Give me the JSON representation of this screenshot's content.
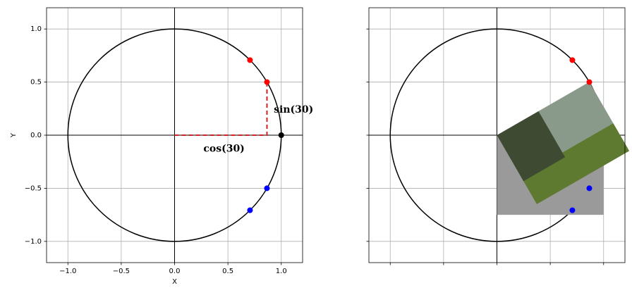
{
  "chart_data": [
    {
      "type": "unit-circle",
      "xlabel": "X",
      "ylabel": "Y",
      "xlim": [
        -1.2,
        1.2
      ],
      "ylim": [
        -1.2,
        1.2
      ],
      "xticks": [
        {
          "value": -1,
          "label": "−1.0"
        },
        {
          "value": -0.5,
          "label": "−0.5"
        },
        {
          "value": 0,
          "label": "0.0"
        },
        {
          "value": 0.5,
          "label": "0.5"
        },
        {
          "value": 1,
          "label": "1.0"
        }
      ],
      "yticks": [
        {
          "value": -1,
          "label": "−1.0"
        },
        {
          "value": -0.5,
          "label": "−0.5"
        },
        {
          "value": 0,
          "label": "0.0"
        },
        {
          "value": 0.5,
          "label": "0.5"
        },
        {
          "value": 1,
          "label": "1.0"
        }
      ],
      "grid": true,
      "hlines": [
        0
      ],
      "vlines": [
        0
      ],
      "circle_radius": 1,
      "points": [
        {
          "color": "#ff0000",
          "x": [
            0.707,
            0.866
          ],
          "y": [
            0.707,
            0.5
          ]
        },
        {
          "color": "#0000ff",
          "x": [
            0.866,
            0.707
          ],
          "y": [
            -0.5,
            -0.707
          ]
        },
        {
          "color": "#000000",
          "x": [
            1
          ],
          "y": [
            0
          ]
        }
      ],
      "dashed": {
        "color": "#d62020",
        "x": [
          0,
          0.866,
          0.866
        ],
        "y": [
          0,
          0,
          0.5
        ]
      },
      "annotations": [
        {
          "text": "sin(30)",
          "x": 0.93,
          "y": 0.24
        },
        {
          "text": "cos(30)",
          "x": 0.27,
          "y": -0.13
        }
      ]
    },
    {
      "type": "unit-circle",
      "xlim": [
        -1.2,
        1.2
      ],
      "ylim": [
        -1.2,
        1.2
      ],
      "xticks": [
        -1,
        -0.5,
        0,
        0.5,
        1
      ],
      "yticks": [
        -1,
        -0.5,
        0,
        0.5,
        1
      ],
      "grid": true,
      "hlines": [
        0
      ],
      "vlines": [
        0
      ],
      "circle_radius": 1,
      "points": [
        {
          "color": "#ff0000",
          "x": [
            0.707,
            0.866
          ],
          "y": [
            0.707,
            0.5
          ]
        },
        {
          "color": "#0000ff",
          "x": [
            0.866,
            0.707
          ],
          "y": [
            -0.5,
            -0.707
          ]
        }
      ]
    }
  ]
}
